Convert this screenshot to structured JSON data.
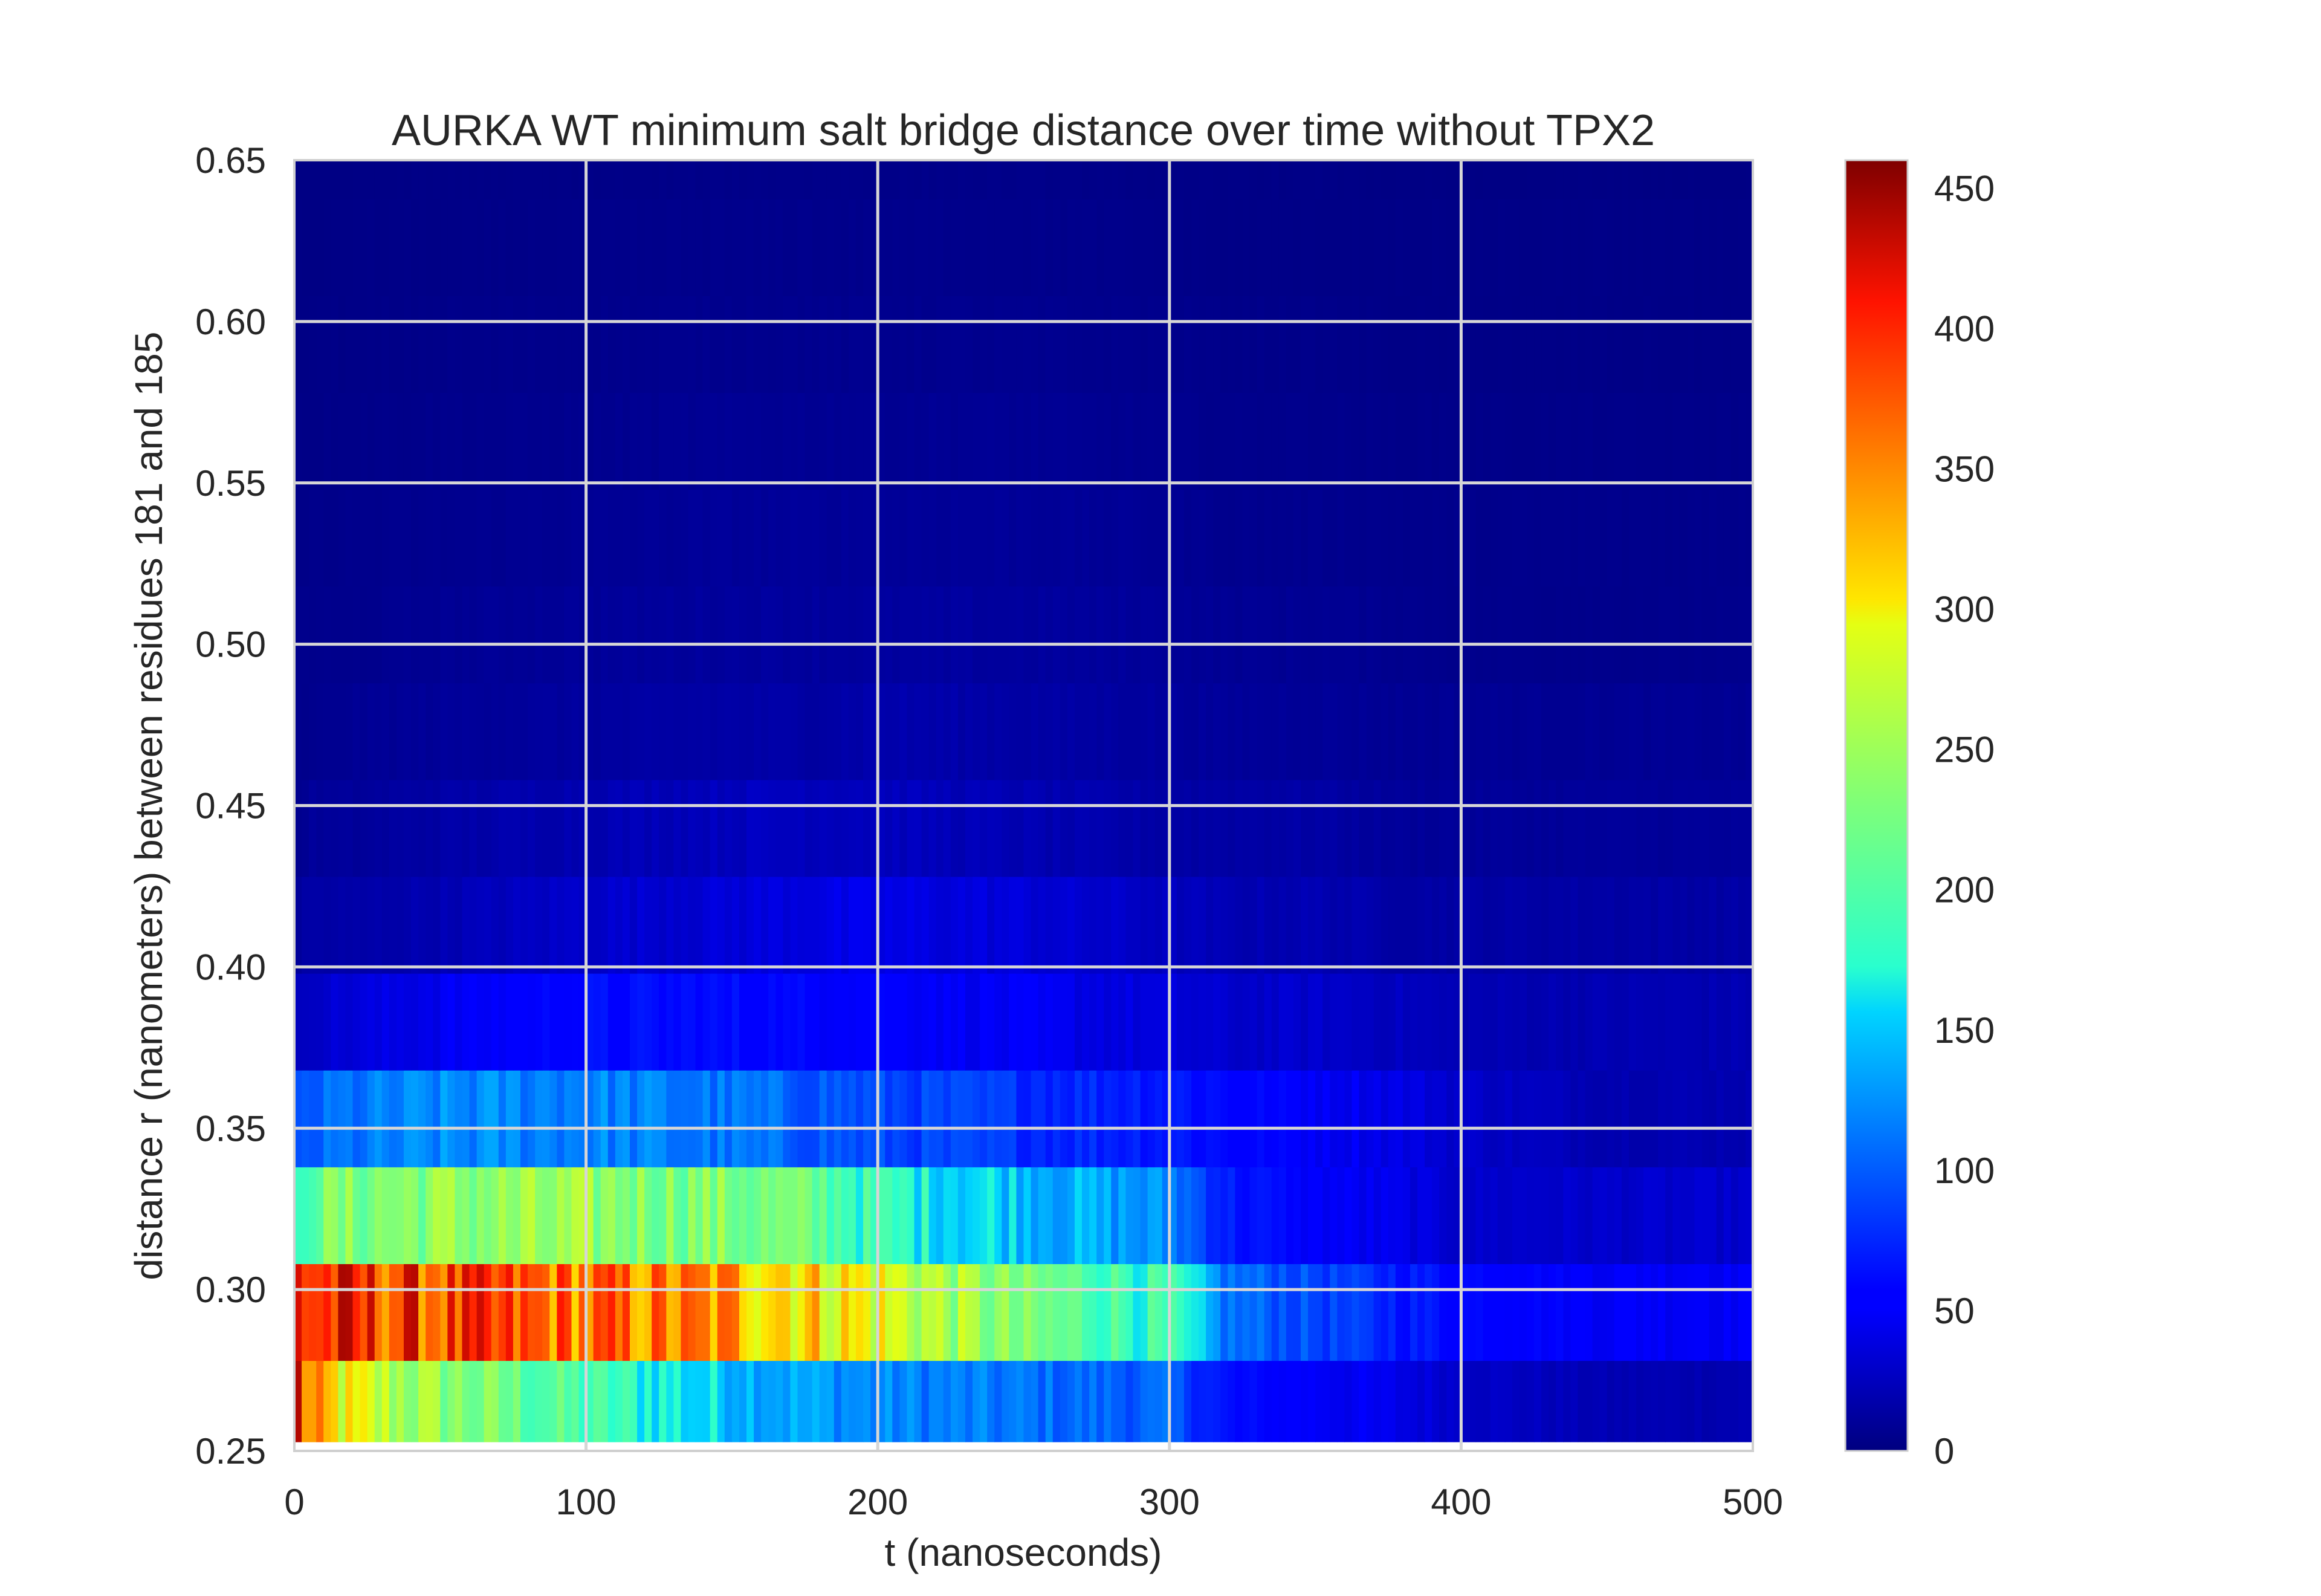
{
  "chart_data": {
    "type": "heatmap",
    "title": "AURKA WT minimum salt bridge distance over time without TPX2",
    "xlabel": "t (nanoseconds)",
    "ylabel": "distance r (nanometers) between residues 181 and 185",
    "xlim": [
      0,
      500
    ],
    "ylim": [
      0.25,
      0.65
    ],
    "x_ticks": [
      "0",
      "100",
      "200",
      "300",
      "400",
      "500"
    ],
    "y_ticks": [
      "0.25",
      "0.30",
      "0.35",
      "0.40",
      "0.45",
      "0.50",
      "0.55",
      "0.60",
      "0.65"
    ],
    "grid": true,
    "colormap": "jet",
    "colorbar": {
      "range": [
        0,
        460
      ],
      "ticks": [
        "0",
        "50",
        "100",
        "150",
        "200",
        "250",
        "300",
        "350",
        "400",
        "450"
      ]
    },
    "row_bins_nm": [
      [
        0.248,
        0.278
      ],
      [
        0.278,
        0.308
      ],
      [
        0.308,
        0.338
      ],
      [
        0.338,
        0.368
      ],
      [
        0.368,
        0.398
      ],
      [
        0.398,
        0.428
      ],
      [
        0.428,
        0.458
      ],
      [
        0.458,
        0.488
      ],
      [
        0.488,
        0.518
      ],
      [
        0.518,
        0.548
      ],
      [
        0.548,
        0.578
      ],
      [
        0.578,
        0.608
      ],
      [
        0.608,
        0.638
      ],
      [
        0.638,
        0.652
      ]
    ],
    "time_anchors_ns": [
      0,
      5,
      20,
      50,
      100,
      150,
      180,
      200,
      250,
      300,
      320,
      350,
      380,
      400,
      450,
      500
    ],
    "row_counts": [
      [
        450,
        330,
        280,
        240,
        190,
        150,
        130,
        120,
        110,
        100,
        60,
        50,
        40,
        30,
        20,
        20
      ],
      [
        420,
        400,
        390,
        380,
        360,
        340,
        310,
        290,
        220,
        180,
        110,
        90,
        70,
        60,
        50,
        50
      ],
      [
        150,
        220,
        230,
        240,
        240,
        230,
        210,
        180,
        150,
        120,
        70,
        50,
        40,
        30,
        30,
        30
      ],
      [
        80,
        100,
        110,
        120,
        120,
        110,
        100,
        90,
        80,
        70,
        60,
        50,
        40,
        30,
        20,
        20
      ],
      [
        20,
        30,
        35,
        45,
        60,
        60,
        55,
        55,
        45,
        35,
        30,
        30,
        25,
        20,
        20,
        20
      ],
      [
        10,
        15,
        15,
        20,
        30,
        35,
        40,
        40,
        35,
        25,
        20,
        20,
        15,
        15,
        15,
        15
      ],
      [
        5,
        10,
        10,
        15,
        20,
        25,
        25,
        25,
        20,
        15,
        15,
        15,
        10,
        10,
        10,
        10
      ],
      [
        5,
        5,
        8,
        10,
        12,
        15,
        15,
        18,
        15,
        12,
        10,
        10,
        8,
        8,
        8,
        8
      ],
      [
        5,
        5,
        5,
        8,
        10,
        12,
        12,
        12,
        12,
        10,
        8,
        8,
        6,
        5,
        5,
        5
      ],
      [
        3,
        4,
        5,
        6,
        8,
        10,
        10,
        10,
        10,
        8,
        6,
        6,
        5,
        5,
        5,
        5
      ],
      [
        3,
        3,
        4,
        5,
        6,
        8,
        8,
        8,
        8,
        6,
        5,
        5,
        4,
        4,
        4,
        4
      ],
      [
        2,
        3,
        3,
        4,
        5,
        6,
        6,
        6,
        6,
        5,
        4,
        4,
        3,
        3,
        3,
        3
      ],
      [
        2,
        2,
        3,
        3,
        4,
        5,
        5,
        5,
        5,
        4,
        3,
        3,
        3,
        3,
        3,
        3
      ],
      [
        2,
        2,
        2,
        3,
        3,
        4,
        4,
        4,
        4,
        3,
        3,
        3,
        2,
        2,
        2,
        2
      ]
    ]
  }
}
